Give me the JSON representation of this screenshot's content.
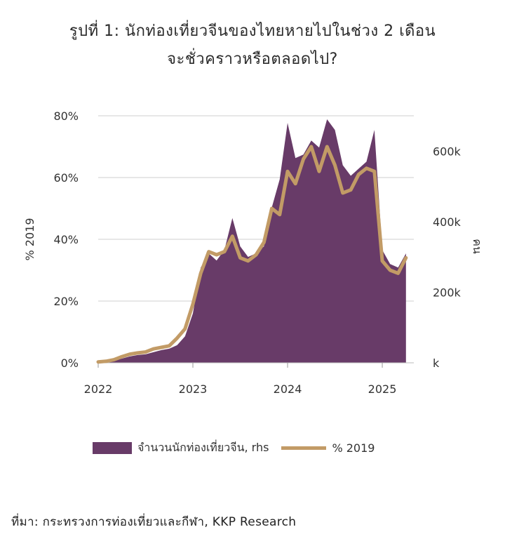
{
  "title_line1": "รูปที่ 1: นักท่องเที่ยวจีนของไทยหายไปในช่วง 2 เดือน",
  "title_line2": "จะชั่วคราวหรือตลอดไป?",
  "source": "ที่มา: กระทรวงการท่องเที่ยวและกีฬา, KKP Research",
  "colors": {
    "area": "#683B68",
    "line": "#C29B66",
    "grid": "#cfcfcf"
  },
  "chart_data": {
    "type": "line",
    "xlabel": "",
    "ylabel": "% 2019",
    "y2label": "คน",
    "x": [
      2022.0,
      2022.083,
      2022.167,
      2022.25,
      2022.333,
      2022.417,
      2022.5,
      2022.583,
      2022.667,
      2022.75,
      2022.833,
      2022.917,
      2023.0,
      2023.083,
      2023.167,
      2023.25,
      2023.333,
      2023.417,
      2023.5,
      2023.583,
      2023.667,
      2023.75,
      2023.833,
      2023.917,
      2024.0,
      2024.083,
      2024.167,
      2024.25,
      2024.333,
      2024.417,
      2024.5,
      2024.583,
      2024.667,
      2024.75,
      2024.833,
      2024.917,
      2025.0,
      2025.083,
      2025.167,
      2025.25
    ],
    "xticks": [
      "2022",
      "2023",
      "2024",
      "2025"
    ],
    "xtick_values": [
      2022,
      2023,
      2024,
      2025
    ],
    "ylim": [
      0,
      80
    ],
    "yticks": [
      "0%",
      "20%",
      "40%",
      "60%",
      "80%"
    ],
    "ytick_values": [
      0,
      20,
      40,
      60,
      80
    ],
    "y2lim": [
      0,
      700000
    ],
    "y2ticks": [
      "k",
      "200k",
      "400k",
      "600k"
    ],
    "y2tick_values": [
      0,
      200000,
      400000,
      600000
    ],
    "legend_position": "bottom",
    "series": [
      {
        "name": "จำนวนนักท่องเที่ยวจีน, rhs",
        "axis": "right",
        "kind": "area",
        "values": [
          3000,
          4000,
          6000,
          12000,
          18000,
          22000,
          24000,
          30000,
          36000,
          40000,
          50000,
          75000,
          140000,
          270000,
          310000,
          290000,
          320000,
          410000,
          330000,
          300000,
          310000,
          330000,
          440000,
          520000,
          680000,
          580000,
          590000,
          630000,
          610000,
          690000,
          660000,
          560000,
          530000,
          550000,
          570000,
          660000,
          320000,
          280000,
          270000,
          310000
        ]
      },
      {
        "name": "% 2019",
        "axis": "left",
        "kind": "line",
        "values": [
          0.3,
          0.5,
          1,
          2,
          2.8,
          3.2,
          3.5,
          4.5,
          5,
          5.5,
          8,
          11,
          19,
          29,
          36,
          35,
          36,
          41,
          34,
          33,
          35,
          39,
          50,
          48,
          62,
          58,
          66,
          70,
          62,
          70,
          64,
          55,
          56,
          61,
          63,
          62,
          33,
          30,
          29,
          34
        ]
      }
    ]
  }
}
